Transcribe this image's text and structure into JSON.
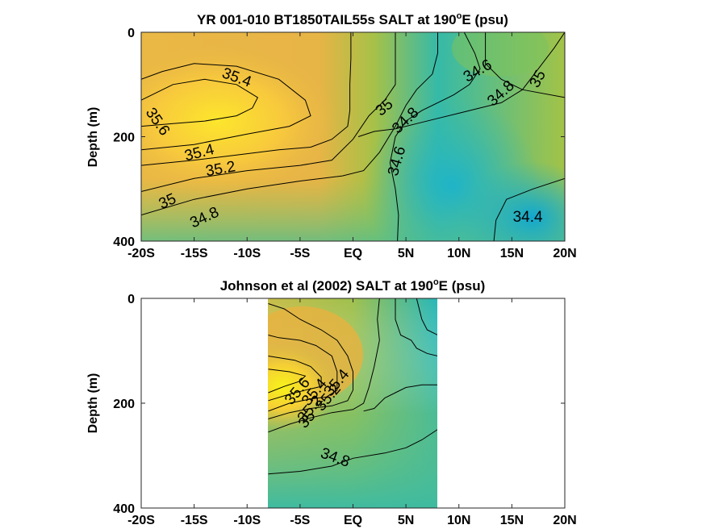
{
  "chart_data": [
    {
      "type": "contour",
      "title_main": "YR 001-010 BT1850TAIL55s SALT at 190",
      "title_sup": "o",
      "title_tail": "E (psu)",
      "ylabel": "Depth (m)",
      "x_range": [
        -20,
        20
      ],
      "y_range": [
        0,
        400
      ],
      "x_ticks": [
        {
          "v": -20,
          "t": "-20S"
        },
        {
          "v": -15,
          "t": "-15S"
        },
        {
          "v": -10,
          "t": "-10S"
        },
        {
          "v": -5,
          "t": "-5S"
        },
        {
          "v": 0,
          "t": "EQ"
        },
        {
          "v": 5,
          "t": "5N"
        },
        {
          "v": 10,
          "t": "10N"
        },
        {
          "v": 15,
          "t": "15N"
        },
        {
          "v": 20,
          "t": "20N"
        }
      ],
      "y_ticks": [
        {
          "v": 0,
          "t": "0"
        },
        {
          "v": 200,
          "t": "200"
        },
        {
          "v": 400,
          "t": "400"
        }
      ],
      "contours": [
        {
          "level": 35.6,
          "points": [
            [
              -20,
              130
            ],
            [
              -17,
              100
            ],
            [
              -14,
              90
            ],
            [
              -11,
              100
            ],
            [
              -9,
              125
            ],
            [
              -9.5,
              145
            ],
            [
              -11,
              160
            ],
            [
              -14,
              170
            ],
            [
              -17,
              175
            ],
            [
              -20,
              180
            ]
          ]
        },
        {
          "level": 35.4,
          "points": [
            [
              -20,
              90
            ],
            [
              -18,
              75
            ],
            [
              -15,
              60
            ],
            [
              -11,
              65
            ],
            [
              -7,
              90
            ],
            [
              -4.5,
              130
            ],
            [
              -4,
              160
            ],
            [
              -6,
              180
            ],
            [
              -10,
              195
            ],
            [
              -15,
              215
            ],
            [
              -20,
              225
            ]
          ]
        },
        {
          "level": 35.2,
          "points": [
            [
              -20,
              255
            ],
            [
              -15,
              245
            ],
            [
              -11,
              235
            ],
            [
              -7,
              225
            ],
            [
              -4,
              220
            ],
            [
              -2,
              205
            ],
            [
              -0.5,
              180
            ],
            [
              -0.3,
              150
            ],
            [
              -0.3,
              100
            ],
            [
              -0.2,
              50
            ],
            [
              -0.2,
              0
            ]
          ]
        },
        {
          "level": 35.0,
          "points": [
            [
              -20,
              305
            ],
            [
              -15,
              280
            ],
            [
              -10,
              265
            ],
            [
              -5,
              255
            ],
            [
              -2,
              245
            ],
            [
              0,
              205
            ],
            [
              1.5,
              160
            ],
            [
              3,
              130
            ],
            [
              4,
              100
            ],
            [
              4,
              50
            ],
            [
              4,
              0
            ]
          ]
        },
        {
          "level": 35.0,
          "points": [
            [
              20,
              0
            ],
            [
              19,
              30
            ],
            [
              17.5,
              70
            ],
            [
              16,
              110
            ],
            [
              14,
              135
            ],
            [
              12,
              145
            ],
            [
              10,
              155
            ],
            [
              8,
              165
            ],
            [
              6,
              175
            ],
            [
              5,
              180
            ],
            [
              4,
              185
            ],
            [
              2,
              190
            ],
            [
              0.5,
              200
            ]
          ]
        },
        {
          "level": 34.8,
          "points": [
            [
              -20,
              350
            ],
            [
              -15,
              320
            ],
            [
              -10,
              300
            ],
            [
              -5,
              285
            ],
            [
              -1,
              275
            ],
            [
              1,
              265
            ],
            [
              2.5,
              230
            ],
            [
              4,
              180
            ],
            [
              5,
              140
            ],
            [
              6,
              110
            ],
            [
              7.5,
              80
            ],
            [
              8,
              40
            ],
            [
              8,
              0
            ]
          ]
        },
        {
          "level": 34.8,
          "points": [
            [
              20,
              125
            ],
            [
              16,
              110
            ],
            [
              14,
              90
            ],
            [
              12.5,
              60
            ],
            [
              12.5,
              0
            ]
          ]
        },
        {
          "level": 34.6,
          "points": [
            [
              10.5,
              0
            ],
            [
              11.5,
              40
            ],
            [
              12,
              70
            ],
            [
              11,
              100
            ],
            [
              9.5,
              120
            ],
            [
              8,
              135
            ],
            [
              6.5,
              150
            ],
            [
              5,
              170
            ],
            [
              4,
              200
            ],
            [
              3.5,
              250
            ],
            [
              4,
              300
            ],
            [
              4.3,
              350
            ],
            [
              4.2,
              400
            ]
          ]
        },
        {
          "level": 34.4,
          "points": [
            [
              20,
              280
            ],
            [
              17,
              300
            ],
            [
              14.5,
              320
            ],
            [
              13.5,
              360
            ],
            [
              13.3,
              400
            ]
          ]
        }
      ],
      "labels": [
        {
          "t": "35.4",
          "x": -11,
          "y": 88,
          "rot": 20
        },
        {
          "t": "35.6",
          "x": -18.5,
          "y": 172,
          "rot": 55
        },
        {
          "t": "35.4",
          "x": -14.5,
          "y": 232,
          "rot": -14
        },
        {
          "t": "35.2",
          "x": -12.5,
          "y": 263,
          "rot": -10
        },
        {
          "t": "35",
          "x": -17.5,
          "y": 325,
          "rot": -24
        },
        {
          "t": "34.8",
          "x": -14,
          "y": 356,
          "rot": -25
        },
        {
          "t": "35",
          "x": 3,
          "y": 145,
          "rot": -40
        },
        {
          "t": "34.8",
          "x": 5,
          "y": 170,
          "rot": -44
        },
        {
          "t": "34.6",
          "x": 4.2,
          "y": 247,
          "rot": -74
        },
        {
          "t": "34.6",
          "x": 11.8,
          "y": 75,
          "rot": -30
        },
        {
          "t": "34.8",
          "x": 14,
          "y": 118,
          "rot": -42
        },
        {
          "t": "35",
          "x": 17.5,
          "y": 90,
          "rot": -62
        },
        {
          "t": "34.4",
          "x": 16.5,
          "y": 355,
          "rot": 0
        }
      ]
    },
    {
      "type": "contour",
      "title_main": "Johnson et al (2002) SALT at 190",
      "title_sup": "o",
      "title_tail": "E (psu)",
      "ylabel": "Depth (m)",
      "x_range": [
        -20,
        20
      ],
      "y_range": [
        0,
        400
      ],
      "data_x_range": [
        -8,
        8
      ],
      "x_ticks": [
        {
          "v": -20,
          "t": "-20S"
        },
        {
          "v": -15,
          "t": "-15S"
        },
        {
          "v": -10,
          "t": "-10S"
        },
        {
          "v": -5,
          "t": "-5S"
        },
        {
          "v": 0,
          "t": "EQ"
        },
        {
          "v": 5,
          "t": "5N"
        },
        {
          "v": 10,
          "t": "10N"
        },
        {
          "v": 15,
          "t": "15N"
        },
        {
          "v": 20,
          "t": "20N"
        }
      ],
      "y_ticks": [
        {
          "v": 0,
          "t": "0"
        },
        {
          "v": 200,
          "t": "200"
        },
        {
          "v": 400,
          "t": "400"
        }
      ],
      "contours": [
        {
          "level": 34.8,
          "points": [
            [
              -8,
              335
            ],
            [
              -5,
              330
            ],
            [
              -2,
              320
            ],
            [
              0,
              305
            ],
            [
              3,
              295
            ],
            [
              5,
              285
            ],
            [
              6.5,
              270
            ],
            [
              8,
              250
            ]
          ]
        },
        {
          "level": 35.0,
          "points": [
            [
              -8,
              255
            ],
            [
              -6,
              240
            ],
            [
              -4,
              228
            ],
            [
              -2,
              218
            ],
            [
              0,
              212
            ],
            [
              1,
              200
            ],
            [
              1.5,
              170
            ],
            [
              2,
              130
            ],
            [
              2.5,
              80
            ],
            [
              2.3,
              40
            ],
            [
              2.5,
              0
            ]
          ]
        },
        {
          "level": 35.0,
          "points": [
            [
              8,
              165
            ],
            [
              6.5,
              165
            ],
            [
              5,
              170
            ],
            [
              4,
              180
            ],
            [
              3,
              190
            ],
            [
              2,
              210
            ],
            [
              1,
              215
            ]
          ]
        },
        {
          "level": 35.2,
          "points": [
            [
              -8,
              230
            ],
            [
              -6,
              218
            ],
            [
              -4,
              210
            ],
            [
              -2,
              205
            ],
            [
              -0.5,
              195
            ],
            [
              0,
              175
            ],
            [
              0,
              140
            ],
            [
              -0.5,
              110
            ],
            [
              -1.5,
              80
            ],
            [
              -3,
              60
            ],
            [
              -5,
              40
            ],
            [
              -6.5,
              20
            ],
            [
              -8,
              10
            ]
          ]
        },
        {
          "level": 35.4,
          "points": [
            [
              -8,
              215
            ],
            [
              -6,
              200
            ],
            [
              -4,
              192
            ],
            [
              -2.5,
              188
            ],
            [
              -1.5,
              175
            ],
            [
              -1.5,
              140
            ],
            [
              -2,
              110
            ],
            [
              -3.5,
              90
            ],
            [
              -5,
              80
            ],
            [
              -7,
              75
            ],
            [
              -8,
              70
            ]
          ]
        },
        {
          "level": 35.6,
          "points": [
            [
              -8,
              195
            ],
            [
              -6,
              183
            ],
            [
              -4.5,
              175
            ],
            [
              -3,
              168
            ],
            [
              -3,
              150
            ],
            [
              -4,
              130
            ],
            [
              -5.5,
              118
            ],
            [
              -8,
              110
            ]
          ]
        },
        {
          "level": 35.6,
          "points": [
            [
              -8,
              180
            ],
            [
              -6.5,
              168
            ],
            [
              -5,
              158
            ],
            [
              -4.5,
              148
            ],
            [
              -6,
              140
            ],
            [
              -8,
              135
            ]
          ]
        },
        {
          "level": 34.8,
          "points": [
            [
              4,
              0
            ],
            [
              4,
              40
            ],
            [
              4.5,
              70
            ],
            [
              5.5,
              80
            ],
            [
              6,
              95
            ],
            [
              7,
              105
            ],
            [
              8,
              110
            ]
          ]
        },
        {
          "level": 34.6,
          "points": [
            [
              6,
              0
            ],
            [
              6.5,
              40
            ],
            [
              7,
              60
            ],
            [
              8,
              70
            ]
          ]
        }
      ],
      "labels": [
        {
          "t": "35.6",
          "x": -5.2,
          "y": 178,
          "rot": -50
        },
        {
          "t": "35.4",
          "x": -3.6,
          "y": 180,
          "rot": -50
        },
        {
          "t": "35.4",
          "x": -1.5,
          "y": 162,
          "rot": -50
        },
        {
          "t": "35.2",
          "x": -2.3,
          "y": 190,
          "rot": -50
        },
        {
          "t": "35.2",
          "x": -4,
          "y": 212,
          "rot": -50
        },
        {
          "t": "35",
          "x": -4.3,
          "y": 232,
          "rot": -50
        },
        {
          "t": "34.8",
          "x": -1.7,
          "y": 305,
          "rot": 20
        }
      ]
    }
  ]
}
